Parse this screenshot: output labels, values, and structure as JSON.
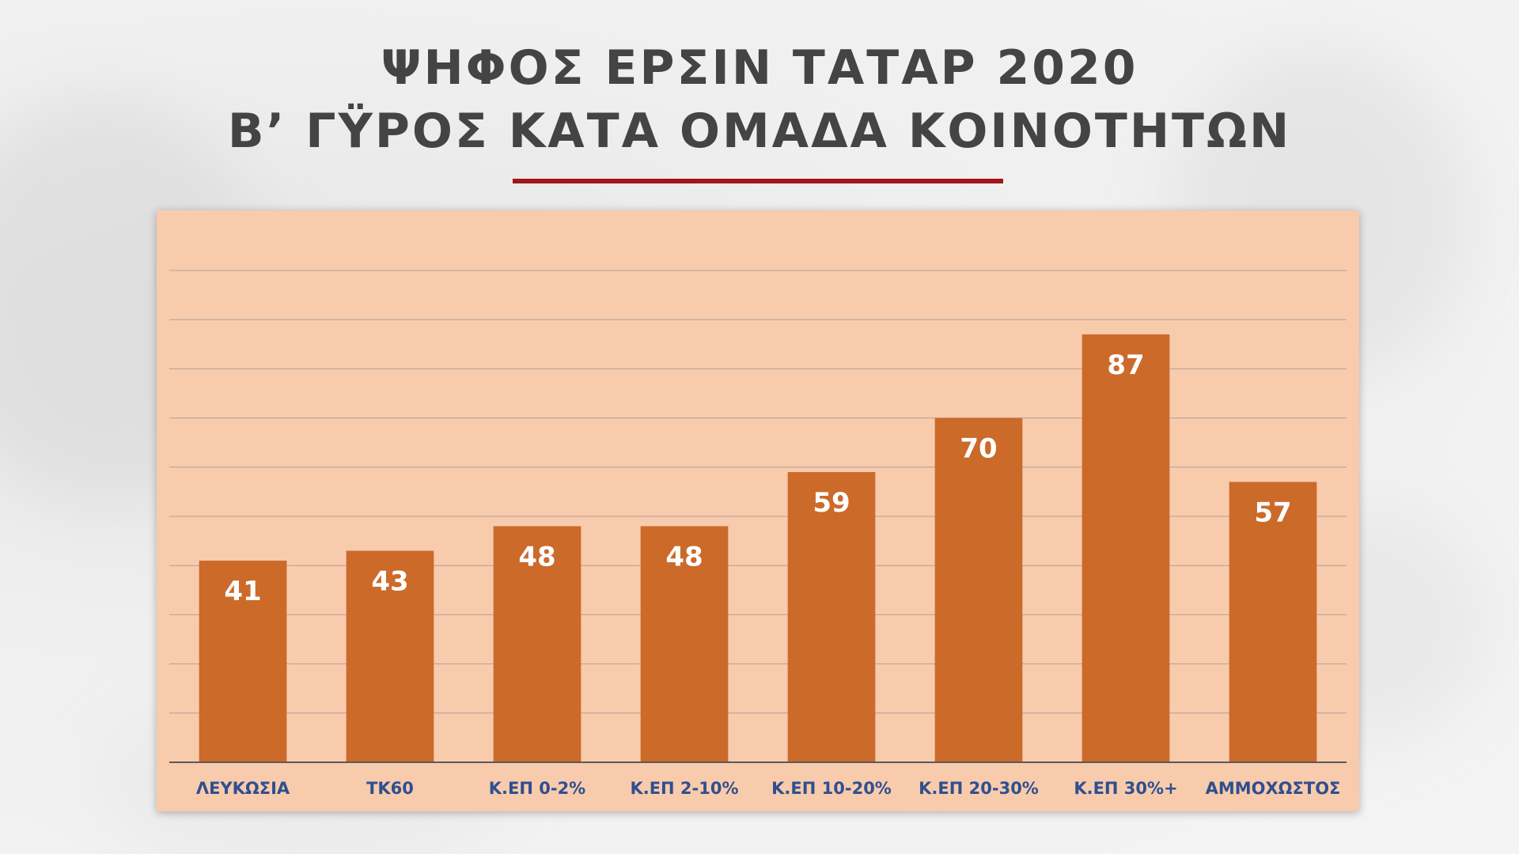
{
  "title": {
    "line1": "ΨΗΦΟΣ ΕΡΣΙΝ ΤΑΤΑΡ 2020",
    "line2": "Β’ ΓΫΡΟΣ ΚΑΤΑ ΟΜΑΔΑ ΚΟΙΝΟΤΗΤΩΝ"
  },
  "colors": {
    "bar": "#cc6a2a",
    "plot_background": "#f8cbad",
    "title_rule": "#a3141c",
    "category_text": "#2f4f8f",
    "title_text": "#444444"
  },
  "chart_data": {
    "type": "bar",
    "title": "ΨΗΦΟΣ ΕΡΣΙΝ ΤΑΤΑΡ 2020 Β’ ΓΫΡΟΣ ΚΑΤΑ ΟΜΑΔΑ ΚΟΙΝΟΤΗΤΩΝ",
    "categories": [
      "ΛΕΥΚΩΣΙΑ",
      "ΤΚ60",
      "Κ.ΕΠ 0-2%",
      "Κ.ΕΠ 2-10%",
      "Κ.ΕΠ 10-20%",
      "Κ.ΕΠ 20-30%",
      "Κ.ΕΠ 30%+",
      "ΑΜΜΟΧΩΣΤΟΣ"
    ],
    "values": [
      41,
      43,
      48,
      48,
      59,
      70,
      87,
      57
    ],
    "data_labels": [
      "41",
      "43",
      "48",
      "48",
      "59",
      "70",
      "87",
      "57"
    ],
    "xlabel": "",
    "ylabel": "",
    "ylim": [
      0,
      100
    ],
    "gridline_step": 10,
    "grid": true,
    "legend": "none",
    "y_tick_labels_shown": false
  }
}
